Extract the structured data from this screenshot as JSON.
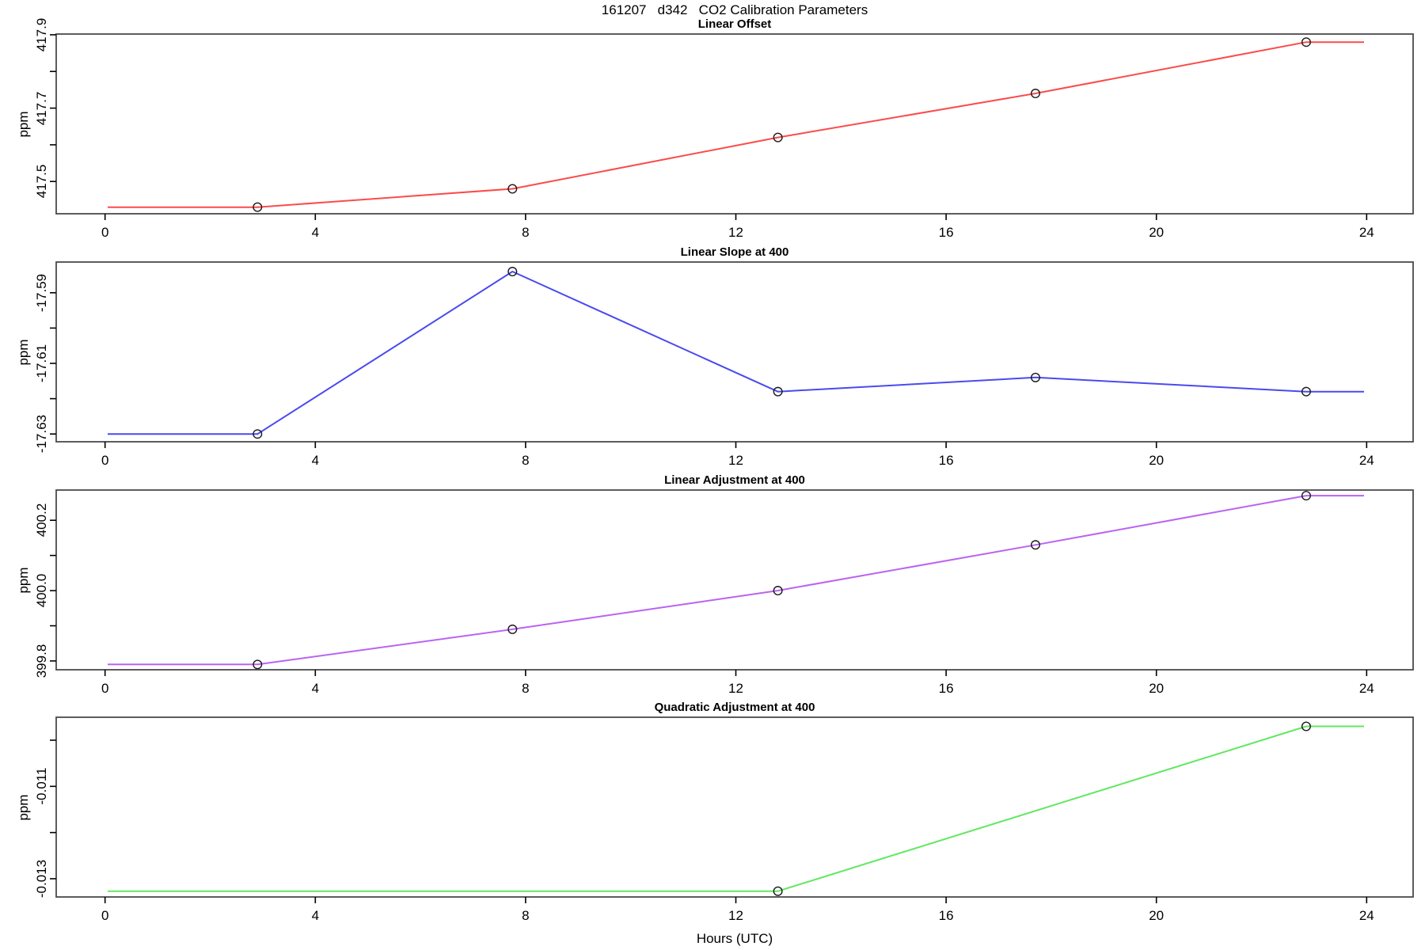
{
  "title": "161207   d342   CO2 Calibration Parameters",
  "xlabel": "Hours (UTC)",
  "chart_data": {
    "type": "line",
    "title": "161207   d342   CO2 Calibration Parameters",
    "xlabel": "Hours (UTC)",
    "x_unit": "hours UTC",
    "xlim": [
      -0.95,
      24.95
    ],
    "xticks": [
      0,
      4,
      8,
      12,
      16,
      20,
      24
    ],
    "grid": "off",
    "marker": "open-circle",
    "frame_color": "#4a4a4a",
    "panels": [
      {
        "title": "Linear Offset",
        "ylabel": "ppm",
        "color": "#fb4b4b",
        "ylim": [
          417.412,
          417.902
        ],
        "yticks": [
          {
            "value": 417.5,
            "label": "417.5"
          },
          {
            "value": 417.6,
            "label": ""
          },
          {
            "value": 417.7,
            "label": "417.7"
          },
          {
            "value": 417.8,
            "label": ""
          },
          {
            "value": 417.9,
            "label": "417.9"
          }
        ],
        "points": {
          "x": [
            2.9,
            7.75,
            12.8,
            17.7,
            22.85
          ],
          "y": [
            417.43,
            417.48,
            417.62,
            417.74,
            417.88
          ]
        },
        "line": [
          [
            0.05,
            417.43
          ],
          [
            2.9,
            417.43
          ],
          [
            7.75,
            417.48
          ],
          [
            12.8,
            417.62
          ],
          [
            17.7,
            417.74
          ],
          [
            22.85,
            417.88
          ],
          [
            23.95,
            417.88
          ]
        ]
      },
      {
        "title": "Linear Slope at 400",
        "ylabel": "ppm",
        "color": "#4a4af0",
        "ylim": [
          -17.6322,
          -17.5813
        ],
        "yticks": [
          {
            "value": -17.63,
            "label": "-17.63"
          },
          {
            "value": -17.62,
            "label": ""
          },
          {
            "value": -17.61,
            "label": "-17.61"
          },
          {
            "value": -17.6,
            "label": ""
          },
          {
            "value": -17.59,
            "label": "-17.59"
          }
        ],
        "points": {
          "x": [
            2.9,
            7.75,
            12.8,
            17.7,
            22.85
          ],
          "y": [
            -17.63,
            -17.584,
            -17.618,
            -17.614,
            -17.618
          ]
        },
        "line": [
          [
            0.05,
            -17.63
          ],
          [
            2.9,
            -17.63
          ],
          [
            7.75,
            -17.584
          ],
          [
            12.8,
            -17.618
          ],
          [
            17.7,
            -17.614
          ],
          [
            22.85,
            -17.618
          ],
          [
            23.95,
            -17.618
          ]
        ]
      },
      {
        "title": "Linear Adjustment at 400",
        "ylabel": "ppm",
        "color": "#bb63f2",
        "ylim": [
          399.775,
          400.286
        ],
        "yticks": [
          {
            "value": 399.8,
            "label": "399.8"
          },
          {
            "value": 399.9,
            "label": ""
          },
          {
            "value": 400.0,
            "label": "400.0"
          },
          {
            "value": 400.1,
            "label": ""
          },
          {
            "value": 400.2,
            "label": "400.2"
          }
        ],
        "points": {
          "x": [
            2.9,
            7.75,
            12.8,
            17.7,
            22.85
          ],
          "y": [
            399.79,
            399.89,
            400.0,
            400.13,
            400.27
          ]
        },
        "line": [
          [
            0.05,
            399.79
          ],
          [
            2.9,
            399.79
          ],
          [
            7.75,
            399.89
          ],
          [
            12.8,
            400.0
          ],
          [
            17.7,
            400.13
          ],
          [
            22.85,
            400.27
          ],
          [
            23.95,
            400.27
          ]
        ]
      },
      {
        "title": "Quadratic Adjustment at 400",
        "ylabel": "ppm",
        "color": "#63e763",
        "ylim": [
          -0.013395,
          -0.009503
        ],
        "yticks": [
          {
            "value": -0.013,
            "label": "-0.013"
          },
          {
            "value": -0.012,
            "label": ""
          },
          {
            "value": -0.011,
            "label": "-0.011"
          },
          {
            "value": -0.01,
            "label": ""
          }
        ],
        "points": {
          "x": [
            12.8,
            22.85
          ],
          "y": [
            -0.01327,
            -0.0097
          ]
        },
        "line": [
          [
            0.05,
            -0.01327
          ],
          [
            12.8,
            -0.01327
          ],
          [
            22.85,
            -0.0097
          ],
          [
            23.95,
            -0.0097
          ]
        ]
      }
    ]
  }
}
